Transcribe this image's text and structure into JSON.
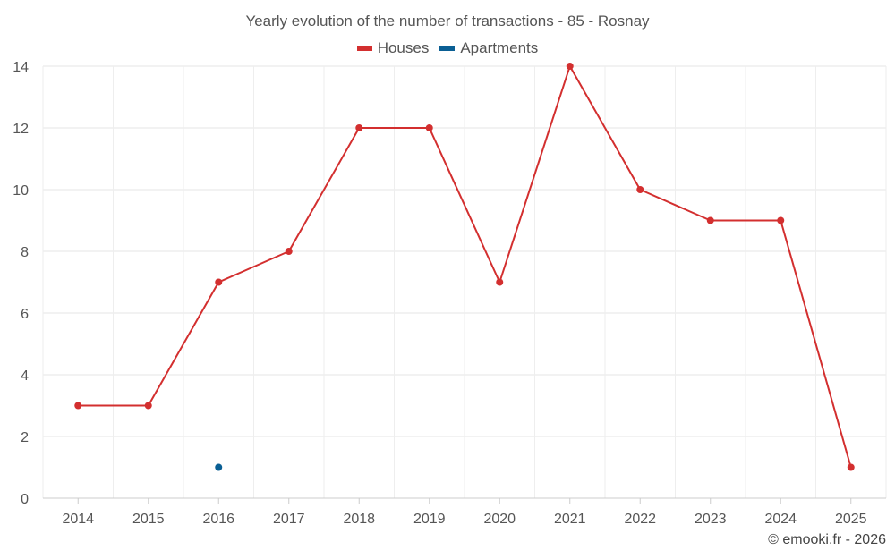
{
  "chart_data": {
    "type": "line",
    "title": "Yearly evolution of the number of transactions - 85 - Rosnay",
    "xlabel": "",
    "ylabel": "",
    "categories": [
      "2014",
      "2015",
      "2016",
      "2017",
      "2018",
      "2019",
      "2020",
      "2021",
      "2022",
      "2023",
      "2024",
      "2025"
    ],
    "ylim": [
      0,
      14
    ],
    "yticks": [
      0,
      2,
      4,
      6,
      8,
      10,
      12,
      14
    ],
    "grid": true,
    "legend_position": "top-center",
    "series": [
      {
        "name": "Houses",
        "color": "#d32f2f",
        "values": [
          3,
          3,
          7,
          8,
          12,
          12,
          7,
          14,
          10,
          9,
          9,
          1
        ]
      },
      {
        "name": "Apartments",
        "color": "#0a5f94",
        "values": [
          null,
          null,
          1,
          null,
          null,
          null,
          null,
          null,
          null,
          null,
          null,
          null
        ]
      }
    ]
  },
  "credit": "© emooki.fr - 2026"
}
